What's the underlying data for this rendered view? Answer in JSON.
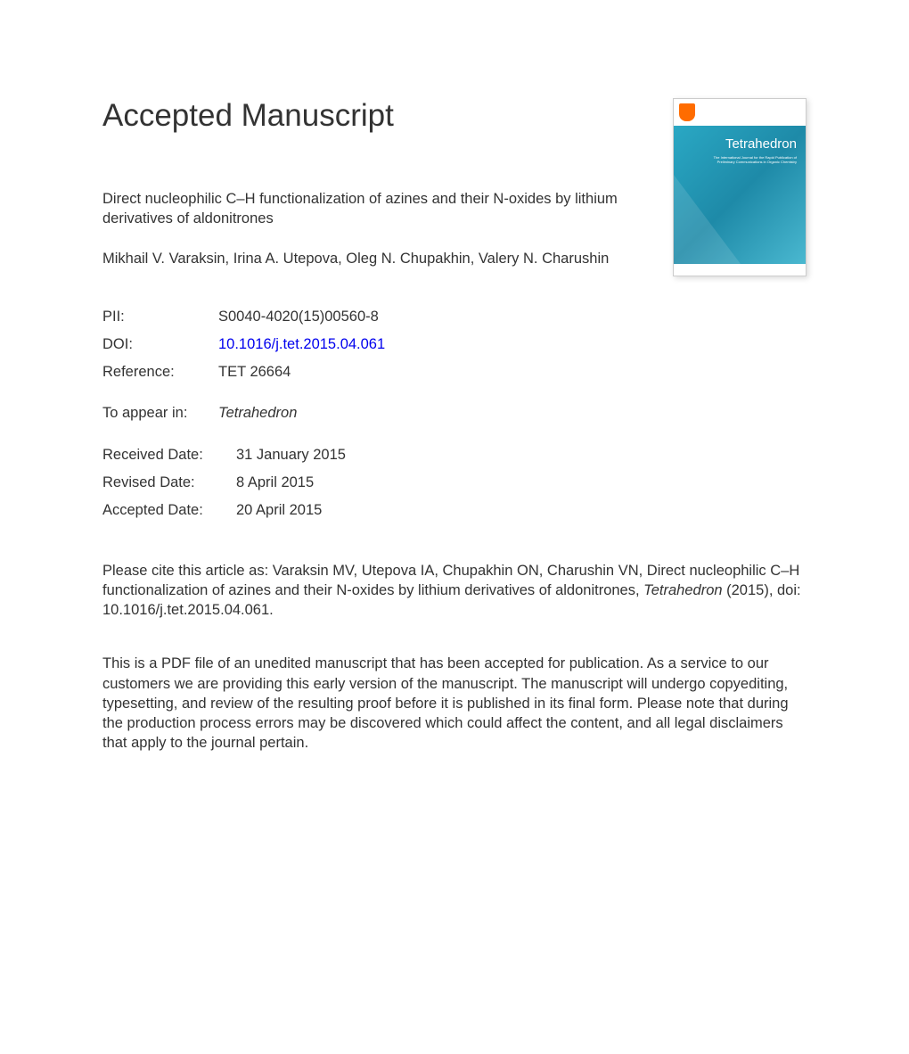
{
  "heading": "Accepted Manuscript",
  "article": {
    "title": "Direct nucleophilic C–H functionalization of azines and their N-oxides by lithium derivatives of aldonitrones",
    "authors": "Mikhail V. Varaksin, Irina A. Utepova, Oleg N. Chupakhin, Valery N. Charushin"
  },
  "journal_cover": {
    "name": "Tetrahedron",
    "subtitle": "The International Journal for the Rapid Publication of Preliminary Communications in Organic Chemistry",
    "publisher": "Elsevier",
    "colors": {
      "main": "#2aa8c4",
      "logo": "#ff6c00"
    }
  },
  "meta": {
    "pii_label": "PII:",
    "pii_value": "S0040-4020(15)00560-8",
    "doi_label": "DOI:",
    "doi_value": "10.1016/j.tet.2015.04.061",
    "ref_label": "Reference:",
    "ref_value": "TET 26664"
  },
  "appear": {
    "label": "To appear in:",
    "value": "Tetrahedron"
  },
  "dates": {
    "received_label": "Received Date:",
    "received_value": "31 January 2015",
    "revised_label": "Revised Date:",
    "revised_value": "8 April 2015",
    "accepted_label": "Accepted Date:",
    "accepted_value": "20 April 2015"
  },
  "citation": {
    "prefix": "Please cite this article as: Varaksin MV, Utepova IA, Chupakhin ON, Charushin VN, Direct nucleophilic C–H functionalization of azines and their N-oxides by lithium derivatives of aldonitrones, ",
    "journal": "Tetrahedron",
    "suffix": " (2015), doi: 10.1016/j.tet.2015.04.061."
  },
  "disclaimer": "This is a PDF file of an unedited manuscript that has been accepted for publication. As a service to our customers we are providing this early version of the manuscript. The manuscript will undergo copyediting, typesetting, and review of the resulting proof before it is published in its final form. Please note that during the production process errors may be discovered which could affect the content, and all legal disclaimers that apply to the journal pertain.",
  "colors": {
    "text": "#333333",
    "link": "#0000ee",
    "background": "#ffffff"
  },
  "typography": {
    "heading_fontsize": 35,
    "body_fontsize": 16.5,
    "font_family": "Arial"
  }
}
